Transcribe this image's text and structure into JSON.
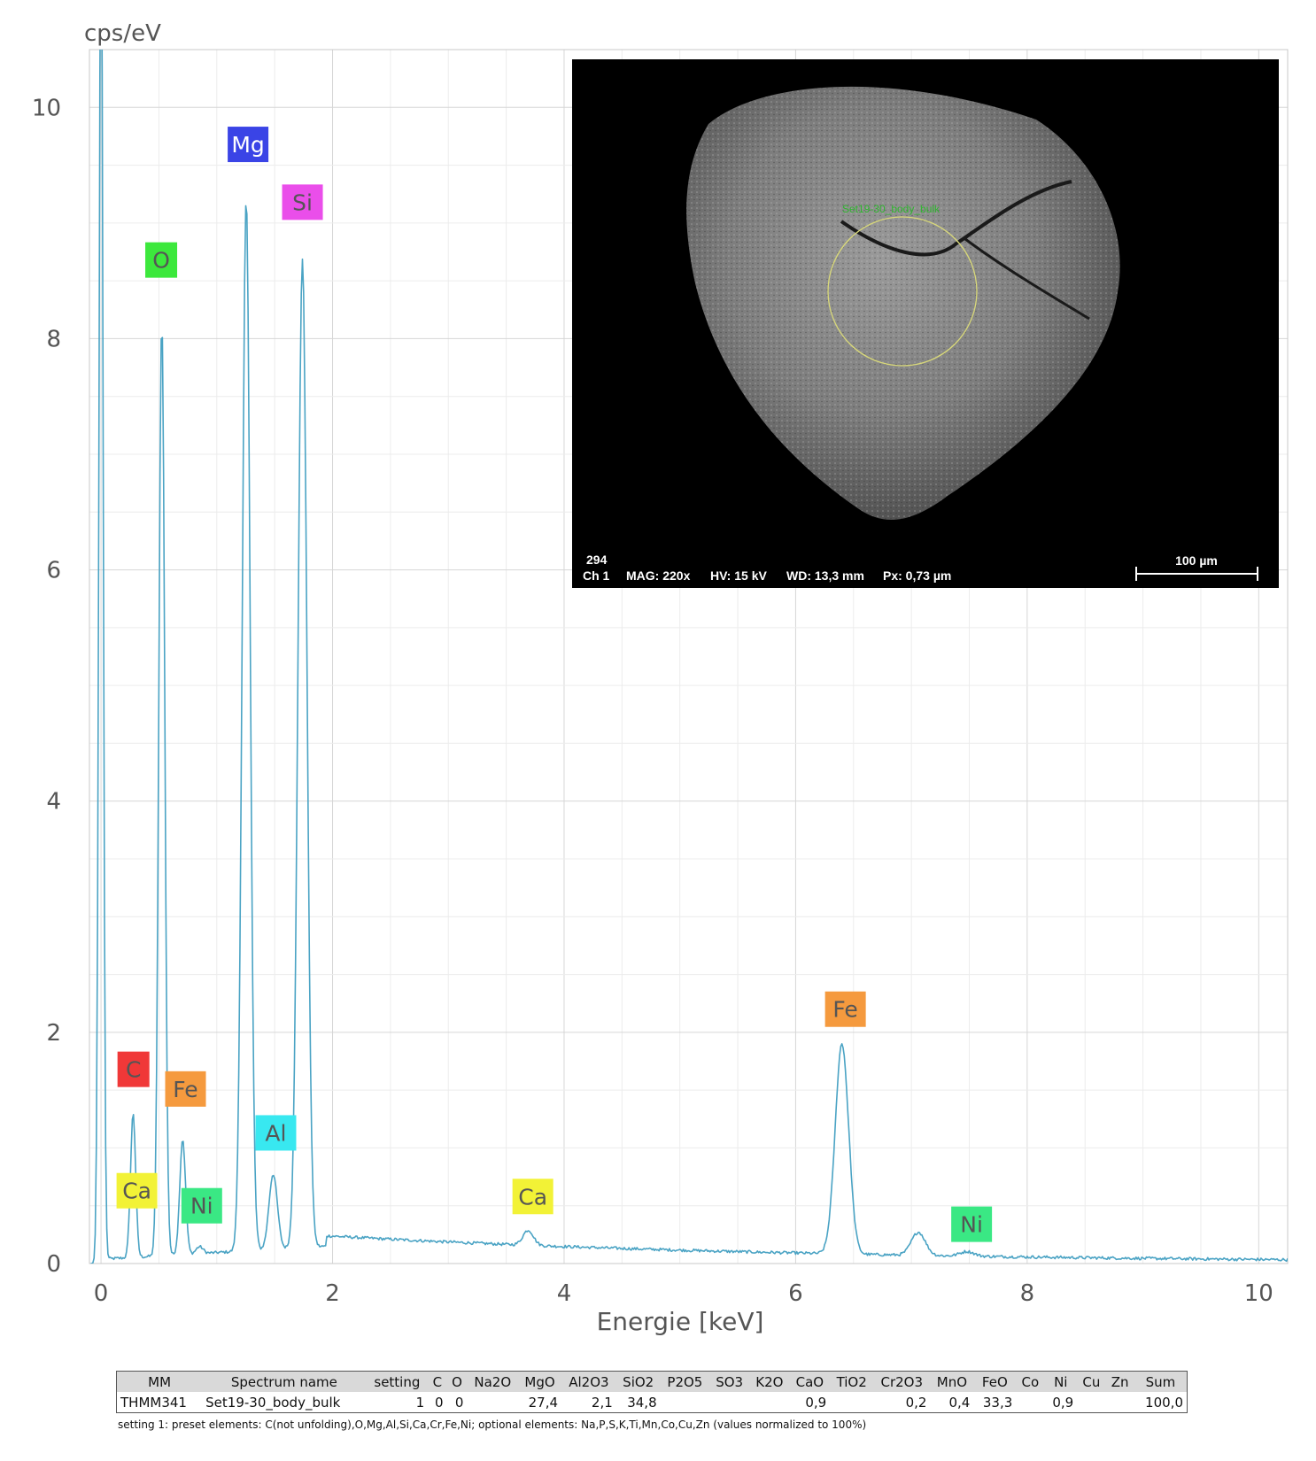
{
  "chart_data": {
    "type": "line",
    "ylabel": "cps/eV",
    "xlabel": "Energie [keV]",
    "xlim": [
      -0.1,
      10.25
    ],
    "ylim": [
      0,
      10.5
    ],
    "x_ticks": [
      0,
      2,
      4,
      6,
      8,
      10
    ],
    "y_ticks": [
      0,
      2,
      4,
      6,
      8,
      10
    ],
    "grid": true,
    "series": [
      {
        "color": "#4aa3c4",
        "peaks": [
          {
            "x": 0.0,
            "y": 12.0,
            "w": 0.018
          },
          {
            "x": 0.277,
            "y": 1.25,
            "w": 0.022
          },
          {
            "x": 0.525,
            "y": 8.1,
            "w": 0.025
          },
          {
            "x": 0.705,
            "y": 1.0,
            "w": 0.025
          },
          {
            "x": 0.851,
            "y": 0.06,
            "w": 0.03
          },
          {
            "x": 1.254,
            "y": 9.1,
            "w": 0.034
          },
          {
            "x": 1.487,
            "y": 0.65,
            "w": 0.036
          },
          {
            "x": 1.74,
            "y": 8.55,
            "w": 0.038
          },
          {
            "x": 3.69,
            "y": 0.13,
            "w": 0.045
          },
          {
            "x": 6.4,
            "y": 1.82,
            "w": 0.058
          },
          {
            "x": 7.06,
            "y": 0.2,
            "w": 0.06
          },
          {
            "x": 7.48,
            "y": 0.04,
            "w": 0.06
          }
        ]
      }
    ],
    "peak_labels": [
      {
        "text": "C",
        "x": 0.28,
        "y": 1.68,
        "color": "#f03838"
      },
      {
        "text": "O",
        "x": 0.52,
        "y": 8.68,
        "color": "#3ce83c"
      },
      {
        "text": "Mg",
        "x": 1.27,
        "y": 9.68,
        "color": "#3a44e6"
      },
      {
        "text": "Si",
        "x": 1.74,
        "y": 9.18,
        "color": "#ea4eea"
      },
      {
        "text": "Fe",
        "x": 0.73,
        "y": 1.51,
        "color": "#f59a3e"
      },
      {
        "text": "Al",
        "x": 1.51,
        "y": 1.13,
        "color": "#38e8f0"
      },
      {
        "text": "Ca",
        "x": 0.31,
        "y": 0.63,
        "color": "#f2f236"
      },
      {
        "text": "Ni",
        "x": 0.87,
        "y": 0.5,
        "color": "#3ae884"
      },
      {
        "text": "Ca",
        "x": 3.73,
        "y": 0.58,
        "color": "#f2f236"
      },
      {
        "text": "Fe",
        "x": 6.43,
        "y": 2.2,
        "color": "#f59a3e"
      },
      {
        "text": "Ni",
        "x": 7.52,
        "y": 0.34,
        "color": "#3ae884"
      }
    ]
  },
  "sem_image": {
    "sample_number": "294",
    "channel": "Ch 1",
    "mag": "MAG: 220x",
    "hv": "HV: 15 kV",
    "wd": "WD: 13,3 mm",
    "px": "Px: 0,73 µm",
    "scale_bar": "100 µm",
    "region_label": "Set19-30_body_bulk"
  },
  "results_table": {
    "headers": [
      "MM",
      "Spectrum name",
      "setting",
      "C",
      "O",
      "Na2O",
      "MgO",
      "Al2O3",
      "SiO2",
      "P2O5",
      "SO3",
      "K2O",
      "CaO",
      "TiO2",
      "Cr2O3",
      "MnO",
      "FeO",
      "Co",
      "Ni",
      "Cu",
      "Zn",
      "Sum"
    ],
    "rows": [
      [
        "THMM341",
        "Set19-30_body_bulk",
        "1",
        "0",
        "0",
        "",
        "27,4",
        "2,1",
        "34,8",
        "",
        "",
        "",
        "0,9",
        "",
        "0,2",
        "0,4",
        "33,3",
        "",
        "0,9",
        "",
        "",
        "100,0"
      ]
    ]
  },
  "footnote": "setting 1: preset elements: C(not unfolding),O,Mg,Al,Si,Ca,Cr,Fe,Ni; optional elements: Na,P,S,K,Ti,Mn,Co,Cu,Zn (values normalized to 100%)"
}
